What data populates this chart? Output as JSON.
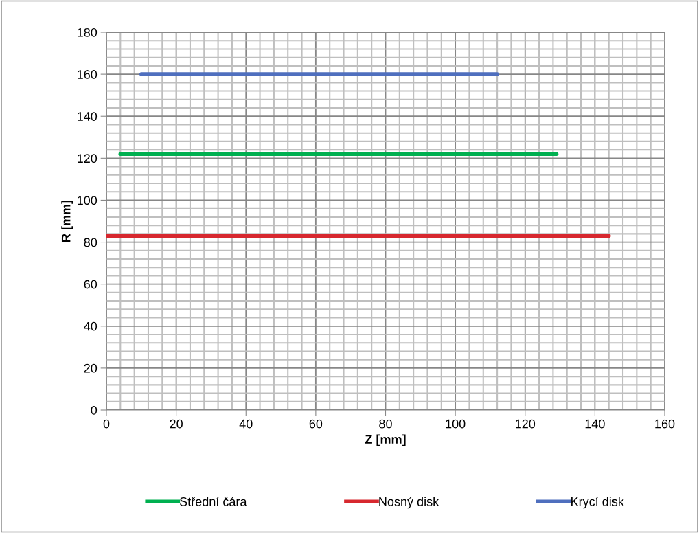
{
  "chart_data": {
    "type": "line",
    "xlabel": "Z [mm]",
    "ylabel": "R [mm]",
    "series": [
      {
        "name": "Střední čára",
        "color": "#00b050",
        "x": [
          4,
          129
        ],
        "values": [
          122,
          122
        ]
      },
      {
        "name": "Nosný disk",
        "color": "#d7282f",
        "x": [
          0,
          144
        ],
        "values": [
          83,
          83
        ]
      },
      {
        "name": "Krycí disk",
        "color": "#4f6fbe",
        "x": [
          10,
          112
        ],
        "values": [
          160,
          160
        ]
      }
    ],
    "xlim": [
      0,
      160
    ],
    "xticks": [
      0,
      20,
      40,
      60,
      80,
      100,
      120,
      140,
      160
    ],
    "ylim": [
      0,
      180
    ],
    "yticks": [
      0,
      20,
      40,
      60,
      80,
      100,
      120,
      140,
      160,
      180
    ],
    "grid": true,
    "legend": "bottom",
    "marker": "none",
    "line_style": "solid"
  }
}
